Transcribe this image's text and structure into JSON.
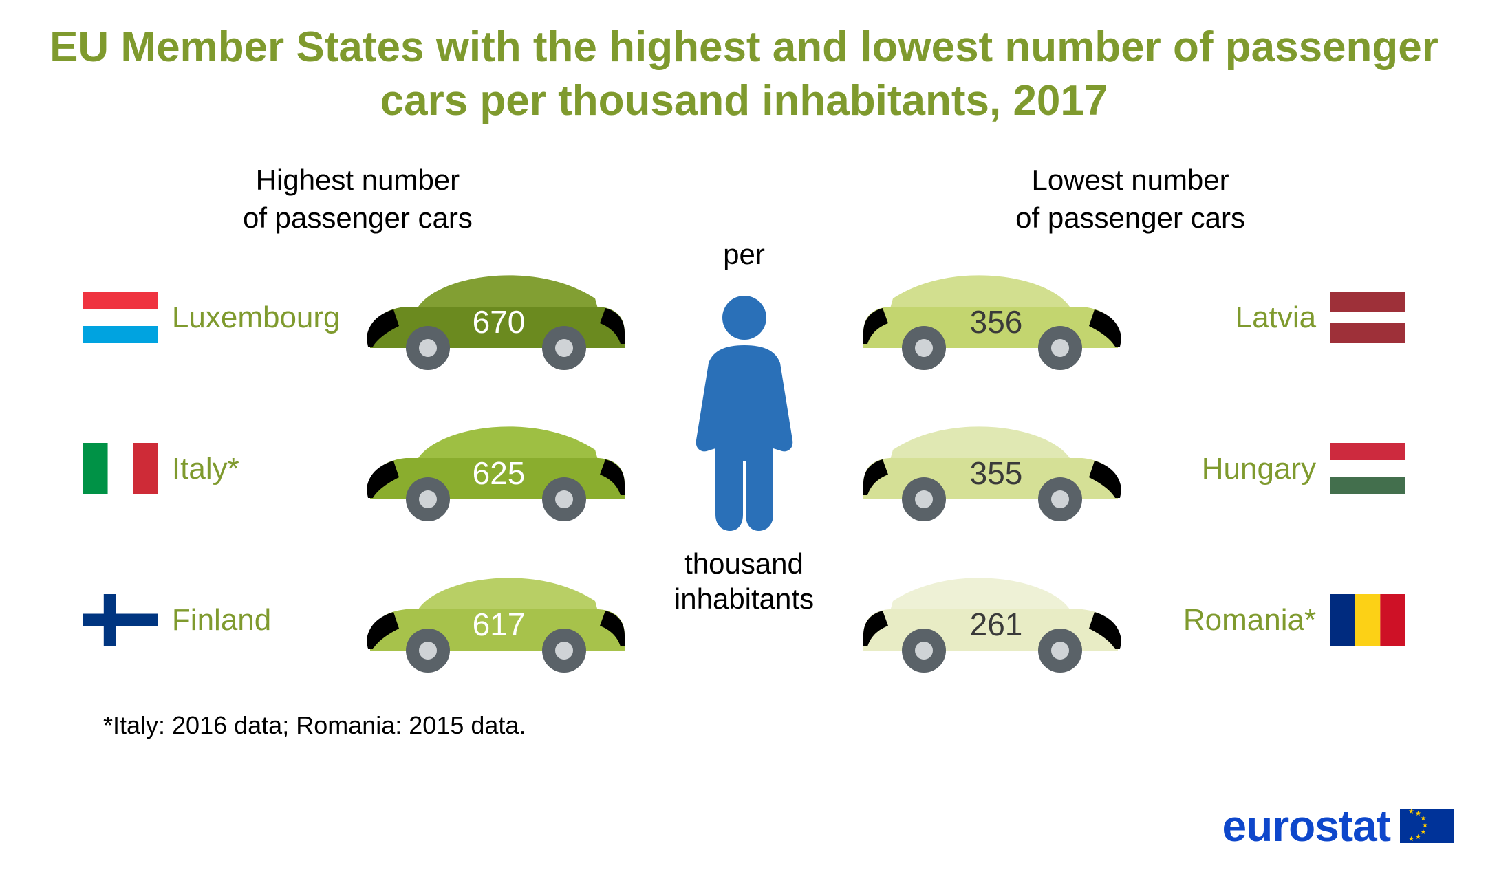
{
  "title": "EU Member States with the highest and lowest number of passenger cars per thousand inhabitants, 2017",
  "title_color": "#7f9a2e",
  "title_fontsize": 62,
  "heading_fontsize": 42,
  "country_fontsize": 44,
  "country_color": "#7f9a2e",
  "center_fontsize": 42,
  "footnote_fontsize": 36,
  "logo_text": "eurostat",
  "logo_color": "#0e47cb",
  "logo_fontsize": 64,
  "person_color": "#2a70b8",
  "center": {
    "per": "per",
    "thousand_line1": "thousand",
    "thousand_line2": "inhabitants"
  },
  "highest": {
    "heading_line1": "Highest number",
    "heading_line2": "of passenger cars",
    "items": [
      {
        "country": "Luxembourg",
        "value": "670",
        "value_color": "#ffffff",
        "body_color": "#6b8a1f",
        "roof_color": "#829f33",
        "flag": {
          "type": "luxembourg",
          "c1": "#ef3340",
          "c2": "#ffffff",
          "c3": "#00a3e0"
        }
      },
      {
        "country": "Italy*",
        "value": "625",
        "value_color": "#ffffff",
        "body_color": "#8aad2e",
        "roof_color": "#9ebf43",
        "flag": {
          "type": "italy",
          "c1": "#009246",
          "c2": "#ffffff",
          "c3": "#ce2b37"
        }
      },
      {
        "country": "Finland",
        "value": "617",
        "value_color": "#ffffff",
        "body_color": "#a7c24b",
        "roof_color": "#b8cf65",
        "flag": {
          "type": "finland",
          "c1": "#ffffff",
          "c2": "#003580"
        }
      }
    ]
  },
  "lowest": {
    "heading_line1": "Lowest number",
    "heading_line2": "of passenger cars",
    "items": [
      {
        "country": "Latvia",
        "value": "356",
        "value_color": "#3a3a3a",
        "body_color": "#c3d56f",
        "roof_color": "#d2df8f",
        "flag": {
          "type": "latvia",
          "c1": "#9e3039",
          "c2": "#ffffff"
        }
      },
      {
        "country": "Hungary",
        "value": "355",
        "value_color": "#3a3a3a",
        "body_color": "#d5e096",
        "roof_color": "#e0e8b3",
        "flag": {
          "type": "hungary",
          "c1": "#cd2a3e",
          "c2": "#ffffff",
          "c3": "#436f4d"
        }
      },
      {
        "country": "Romania*",
        "value": "261",
        "value_color": "#3a3a3a",
        "body_color": "#e8ecc5",
        "roof_color": "#eef1d6",
        "flag": {
          "type": "romania",
          "c1": "#002b7f",
          "c2": "#fcd116",
          "c3": "#ce1126"
        }
      }
    ]
  },
  "footnote": "*Italy: 2016 data; Romania: 2015 data.",
  "wheel_color": "#5a6268",
  "hub_color": "#cfd3d6",
  "light_color": "#f5a14f"
}
